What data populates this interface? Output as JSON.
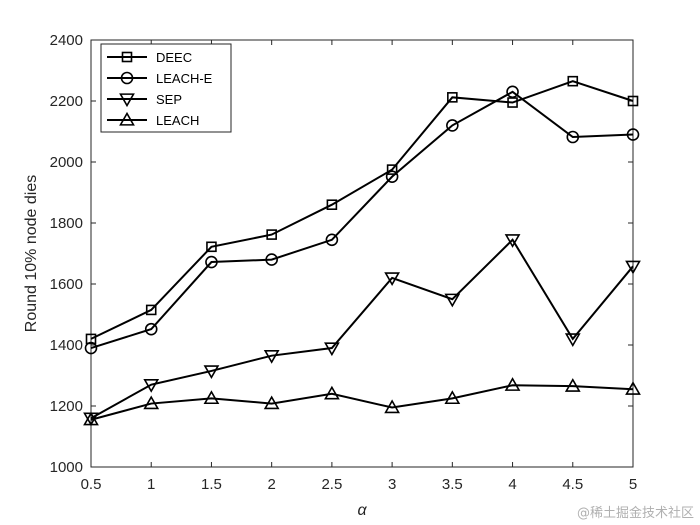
{
  "chart_data": {
    "type": "line",
    "title": "",
    "xlabel": "α",
    "ylabel": "Round 10% node dies",
    "x": [
      0.5,
      1,
      1.5,
      2,
      2.5,
      3,
      3.5,
      4,
      4.5,
      5
    ],
    "x_tick_labels": [
      "0.5",
      "1",
      "1.5",
      "2",
      "2.5",
      "3",
      "3.5",
      "4",
      "4.5",
      "5"
    ],
    "y_tick_labels": [
      "1000",
      "1200",
      "1400",
      "1600",
      "1800",
      "2000",
      "2200",
      "2400"
    ],
    "xlim": [
      0.5,
      5
    ],
    "ylim": [
      1000,
      2400
    ],
    "grid": false,
    "legend_position": "top-left",
    "series": [
      {
        "name": "DEEC",
        "marker": "square",
        "values": [
          1420,
          1515,
          1722,
          1762,
          1860,
          1975,
          2212,
          2195,
          2265,
          2200
        ]
      },
      {
        "name": "LEACH-E",
        "marker": "circle",
        "values": [
          1390,
          1452,
          1672,
          1680,
          1745,
          1952,
          2120,
          2230,
          2082,
          2090
        ]
      },
      {
        "name": "SEP",
        "marker": "triangle-down",
        "values": [
          1160,
          1270,
          1315,
          1365,
          1390,
          1620,
          1550,
          1745,
          1420,
          1658
        ]
      },
      {
        "name": "LEACH",
        "marker": "triangle-up",
        "values": [
          1155,
          1208,
          1225,
          1208,
          1240,
          1195,
          1225,
          1268,
          1265,
          1255
        ]
      }
    ]
  },
  "watermark": "@稀土掘金技术社区",
  "colors": {
    "line": "#000000",
    "axis": "#262626",
    "background": "#ffffff"
  }
}
